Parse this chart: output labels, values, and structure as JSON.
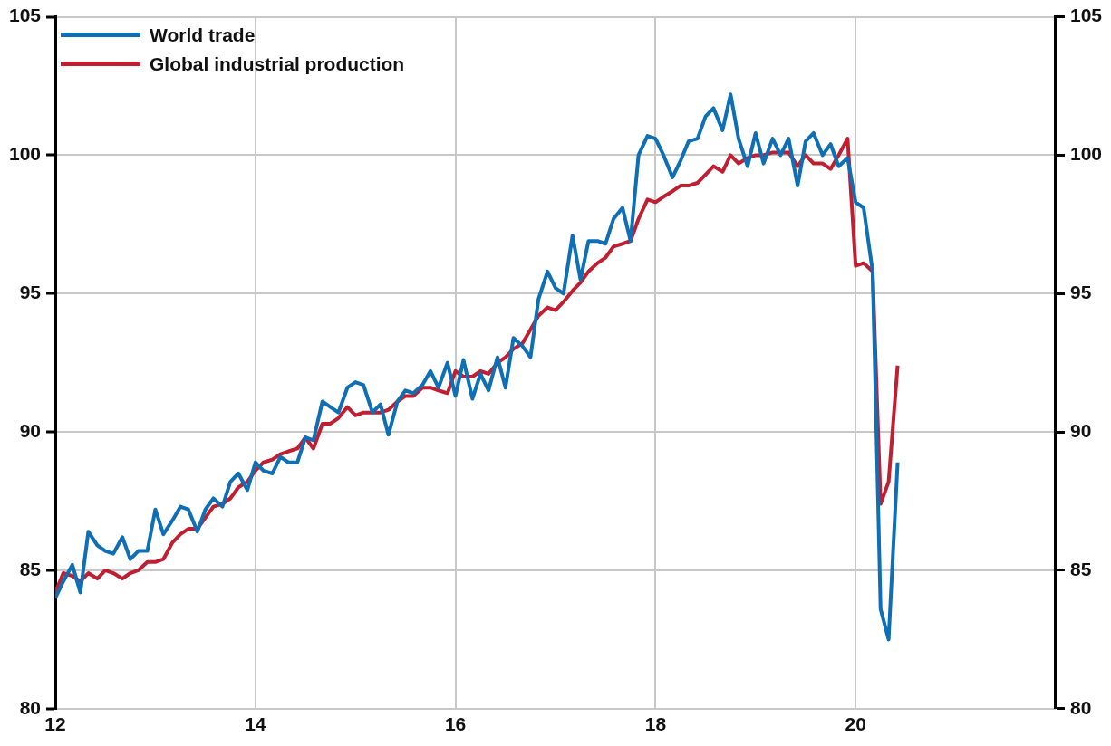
{
  "chart_data": {
    "type": "line",
    "xlim": [
      12,
      22
    ],
    "xticks": [
      12,
      14,
      16,
      18,
      20
    ],
    "ylim": [
      80,
      105
    ],
    "yticks": [
      80,
      85,
      90,
      95,
      100,
      105
    ],
    "y2lim": [
      80,
      105
    ],
    "y2ticks": [
      80,
      85,
      90,
      95,
      100,
      105
    ],
    "grid": true,
    "legend": "top left",
    "marker": "none",
    "line_style": "solid",
    "x": [
      12.0,
      12.08,
      12.17,
      12.25,
      12.33,
      12.42,
      12.5,
      12.58,
      12.67,
      12.75,
      12.83,
      12.92,
      13.0,
      13.08,
      13.17,
      13.25,
      13.33,
      13.42,
      13.5,
      13.58,
      13.67,
      13.75,
      13.83,
      13.92,
      14.0,
      14.08,
      14.17,
      14.25,
      14.33,
      14.42,
      14.5,
      14.58,
      14.67,
      14.75,
      14.83,
      14.92,
      15.0,
      15.08,
      15.17,
      15.25,
      15.33,
      15.42,
      15.5,
      15.58,
      15.67,
      15.75,
      15.83,
      15.92,
      16.0,
      16.08,
      16.17,
      16.25,
      16.33,
      16.42,
      16.5,
      16.58,
      16.67,
      16.75,
      16.83,
      16.92,
      17.0,
      17.08,
      17.17,
      17.25,
      17.33,
      17.42,
      17.5,
      17.58,
      17.67,
      17.75,
      17.83,
      17.92,
      18.0,
      18.08,
      18.17,
      18.25,
      18.33,
      18.42,
      18.5,
      18.58,
      18.67,
      18.75,
      18.83,
      18.92,
      19.0,
      19.08,
      19.17,
      19.25,
      19.33,
      19.42,
      19.5,
      19.58,
      19.67,
      19.75,
      19.83,
      19.92,
      20.0,
      20.08,
      20.17,
      20.25,
      20.33,
      20.42
    ],
    "series": [
      {
        "name": "World trade",
        "color": "#0f6fb5",
        "values": [
          84.0,
          84.6,
          85.2,
          84.2,
          86.4,
          85.9,
          85.7,
          85.6,
          86.2,
          85.4,
          85.7,
          85.7,
          87.2,
          86.3,
          86.8,
          87.3,
          87.2,
          86.4,
          87.2,
          87.6,
          87.3,
          88.2,
          88.5,
          87.9,
          88.9,
          88.6,
          88.5,
          89.1,
          88.9,
          88.9,
          89.8,
          89.7,
          91.1,
          90.9,
          90.7,
          91.6,
          91.8,
          91.7,
          90.7,
          91.0,
          89.9,
          91.1,
          91.5,
          91.4,
          91.7,
          92.2,
          91.6,
          92.5,
          91.3,
          92.6,
          91.2,
          92.1,
          91.5,
          92.7,
          91.6,
          93.4,
          93.1,
          92.7,
          94.8,
          95.8,
          95.2,
          95.0,
          97.1,
          95.5,
          96.9,
          96.9,
          96.8,
          97.7,
          98.1,
          96.9,
          100.0,
          100.7,
          100.6,
          100.0,
          99.2,
          99.8,
          100.5,
          100.6,
          101.4,
          101.7,
          100.9,
          102.2,
          100.6,
          99.6,
          100.8,
          99.7,
          100.6,
          100.0,
          100.6,
          98.9,
          100.5,
          100.8,
          100.0,
          100.4,
          99.6,
          99.9,
          98.3,
          98.1,
          95.8,
          83.6,
          82.5,
          88.9
        ]
      },
      {
        "name": "Global industrial production",
        "color": "#c01f32",
        "values": [
          84.2,
          84.9,
          84.8,
          84.6,
          84.9,
          84.7,
          85.0,
          84.9,
          84.7,
          84.9,
          85.0,
          85.3,
          85.3,
          85.4,
          86.0,
          86.3,
          86.5,
          86.5,
          86.9,
          87.3,
          87.4,
          87.6,
          88.0,
          88.2,
          88.6,
          88.9,
          89.0,
          89.2,
          89.3,
          89.4,
          89.8,
          89.4,
          90.3,
          90.3,
          90.5,
          90.9,
          90.6,
          90.7,
          90.7,
          90.7,
          90.8,
          91.1,
          91.3,
          91.3,
          91.6,
          91.6,
          91.5,
          91.4,
          92.2,
          92.0,
          92.0,
          92.2,
          92.1,
          92.5,
          92.7,
          93.0,
          93.2,
          93.7,
          94.2,
          94.5,
          94.4,
          94.7,
          95.1,
          95.4,
          95.8,
          96.1,
          96.3,
          96.7,
          96.8,
          96.9,
          97.7,
          98.4,
          98.3,
          98.5,
          98.7,
          98.9,
          98.9,
          99.0,
          99.3,
          99.6,
          99.4,
          100.0,
          99.7,
          99.9,
          100.0,
          100.0,
          100.1,
          100.1,
          100.1,
          99.6,
          100.0,
          99.7,
          99.7,
          99.5,
          100.0,
          100.6,
          96.0,
          96.1,
          95.8,
          87.4,
          88.2,
          92.4
        ]
      }
    ]
  }
}
